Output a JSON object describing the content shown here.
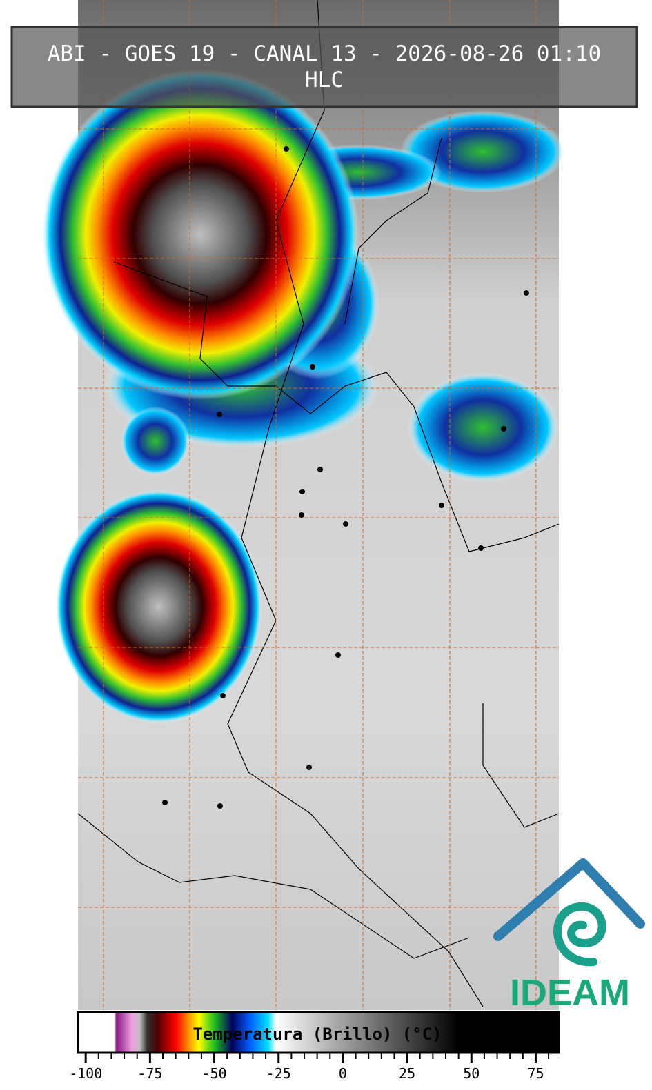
{
  "title": "ABI - GOES 19 - CANAL 13 - 2026-08-26 01:10",
  "subtitle": "HLC",
  "colorbar": {
    "label": "Temperatura (Brillo) (°C)",
    "lim": [
      -103,
      84
    ],
    "ticks": [
      -100,
      -75,
      -50,
      -25,
      0,
      25,
      50,
      75
    ],
    "minor_ticks": [
      -95,
      -90,
      -85,
      -80,
      -70,
      -65,
      -60,
      -55,
      -45,
      -40,
      -35,
      -30,
      -20,
      -15,
      -10,
      -5,
      5,
      10,
      15,
      20,
      30,
      35,
      40,
      45,
      55,
      60,
      65,
      70,
      80
    ],
    "stops": [
      {
        "value": -103,
        "color": "#ffffff"
      },
      {
        "value": -89,
        "color": "#ffffff"
      },
      {
        "value": -88,
        "color": "#8a1a8a"
      },
      {
        "value": -82,
        "color": "#f0a0e0"
      },
      {
        "value": -79,
        "color": "#c0c0c0"
      },
      {
        "value": -76,
        "color": "#303030"
      },
      {
        "value": -72,
        "color": "#500000"
      },
      {
        "value": -65,
        "color": "#ff0000"
      },
      {
        "value": -60,
        "color": "#ff9000"
      },
      {
        "value": -56,
        "color": "#ffff00"
      },
      {
        "value": -50,
        "color": "#20c020"
      },
      {
        "value": -43,
        "color": "#000060"
      },
      {
        "value": -36,
        "color": "#0060ff"
      },
      {
        "value": -29,
        "color": "#00e0ff"
      },
      {
        "value": -26,
        "color": "#ffffff"
      },
      {
        "value": 0,
        "color": "#a0a0a0"
      },
      {
        "value": 45,
        "color": "#000000"
      },
      {
        "value": 84,
        "color": "#000000"
      }
    ]
  },
  "logo": "IDEAM"
}
